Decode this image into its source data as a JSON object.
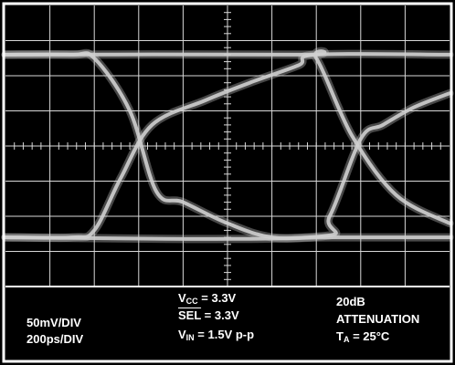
{
  "colors": {
    "background": "#000000",
    "frame": "#ffffff",
    "grid": "#d8d8d8",
    "trace": "#cfcfcf"
  },
  "chart_data": {
    "type": "line",
    "title": "",
    "grid": true,
    "divisions": {
      "x": 10,
      "y": 8
    },
    "x_scale": "200ps/DIV",
    "y_scale": "50mV/DIV",
    "xlabel": "",
    "ylabel": "",
    "xlim": [
      0,
      10
    ],
    "ylim": [
      -4,
      4
    ],
    "x_units": "divisions",
    "y_units": "divisions",
    "series": [
      {
        "values": [
          [
            0,
            2.6
          ],
          [
            1.5,
            2.6
          ],
          [
            2.0,
            2.5
          ],
          [
            2.8,
            1.0
          ],
          [
            3.4,
            -1.3
          ],
          [
            4.0,
            -1.6
          ],
          [
            5.0,
            -2.2
          ],
          [
            6.0,
            -2.6
          ],
          [
            7.3,
            -2.6
          ],
          [
            10,
            -2.6
          ]
        ]
      },
      {
        "values": [
          [
            0,
            -2.6
          ],
          [
            1.5,
            -2.6
          ],
          [
            2.0,
            -2.4
          ],
          [
            2.6,
            -0.9
          ],
          [
            3.3,
            0.6
          ],
          [
            4.5,
            1.3
          ],
          [
            5.5,
            1.8
          ],
          [
            6.6,
            2.3
          ],
          [
            7.0,
            2.6
          ],
          [
            10,
            2.6
          ]
        ]
      },
      {
        "values": [
          [
            0,
            2.6
          ],
          [
            6.6,
            2.6
          ],
          [
            7.0,
            2.5
          ],
          [
            7.8,
            0.3
          ],
          [
            8.8,
            -1.4
          ],
          [
            10,
            -2.2
          ]
        ]
      },
      {
        "values": [
          [
            0,
            -2.6
          ],
          [
            6.8,
            -2.6
          ],
          [
            7.3,
            -2.0
          ],
          [
            8.0,
            0.2
          ],
          [
            8.5,
            0.6
          ],
          [
            9.2,
            1.1
          ],
          [
            10,
            1.5
          ]
        ]
      }
    ],
    "annotations": {
      "scale_volts": "50mV/DIV",
      "scale_time": "200ps/DIV",
      "vcc": {
        "sym": "V",
        "sub": "CC",
        "rest": " = 3.3V"
      },
      "sel": {
        "sym": "SEL",
        "rest": " = 3.3V"
      },
      "vin": {
        "sym": "V",
        "sub": "IN",
        "rest": " = 1.5V p-p"
      },
      "atten_db": "20dB",
      "atten_word": "ATTENUATION",
      "ta": {
        "sym": "T",
        "sub": "A",
        "rest": " = 25°C"
      }
    }
  }
}
